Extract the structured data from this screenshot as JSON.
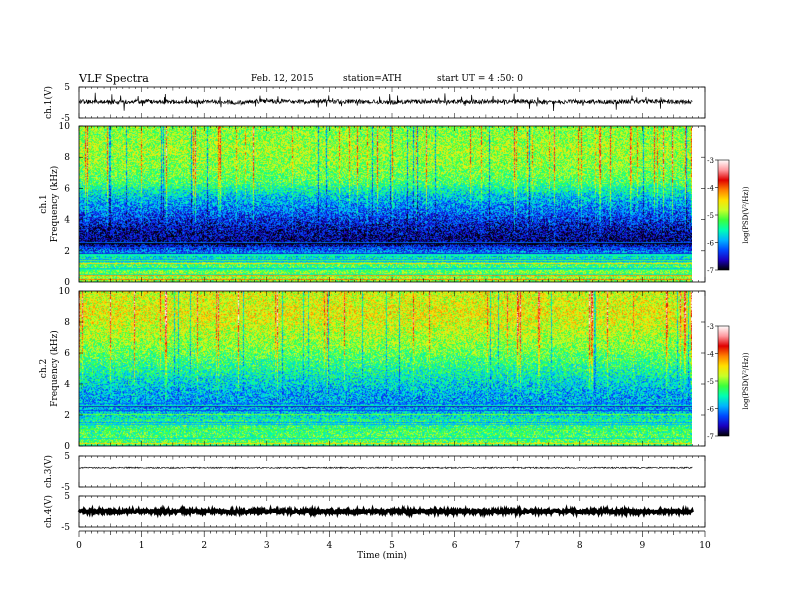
{
  "header": {
    "title": "VLF Spectra",
    "date": "Feb. 12, 2015",
    "station": "station=ATH",
    "start": "start UT = 4 :50: 0"
  },
  "colors": {
    "colormap": [
      "#000000",
      "#1a00c0",
      "#0048ff",
      "#00b4ff",
      "#00ffb4",
      "#3cff3c",
      "#c8ff28",
      "#ffe000",
      "#ff8000",
      "#e00000",
      "#ff9aa0",
      "#ffffff"
    ],
    "trace": "#000000",
    "axis": "#000000"
  },
  "chart_data": [
    {
      "type": "line",
      "panel": "ch1-waveform",
      "ylabel": "ch.1(V)",
      "ylim": [
        -5,
        5
      ],
      "yticks": [
        "5",
        "-5"
      ],
      "x": [
        0,
        0.5,
        1,
        1.5,
        2,
        2.5,
        3,
        3.5,
        4,
        4.5,
        5,
        5.5,
        6,
        6.5,
        7,
        7.5,
        8,
        8.5,
        9,
        9.5,
        9.8
      ],
      "y": [
        0.3,
        0.1,
        0.4,
        0.2,
        0.3,
        0.0,
        0.5,
        0.2,
        0.4,
        0.3,
        0.1,
        0.4,
        0.2,
        0.3,
        0.4,
        0.1,
        0.3,
        0.2,
        0.4,
        0.2,
        0.3
      ]
    },
    {
      "type": "heatmap",
      "panel": "ch1-spectrogram",
      "xlabel": "Time (min)",
      "ylabel": "Frequency (kHz)",
      "channel_label": "ch.1",
      "ylim": [
        0,
        10
      ],
      "yticks": [
        "0",
        "2",
        "4",
        "6",
        "8",
        "10"
      ],
      "colorbar": {
        "label": "log(PSD(V²/Hz))",
        "range": [
          -7,
          -3
        ],
        "ticks": [
          "-3",
          "-4",
          "-5",
          "-6",
          "-7"
        ]
      },
      "frequency_khz": [
        0.5,
        1.5,
        2.5,
        3.5,
        4.5,
        5.5,
        6.5,
        7.5,
        8.5,
        9.5
      ],
      "log_psd_mean": [
        -5.0,
        -5.5,
        -6.8,
        -6.6,
        -6.2,
        -5.8,
        -5.2,
        -5.0,
        -4.9,
        -5.0
      ]
    },
    {
      "type": "heatmap",
      "panel": "ch2-spectrogram",
      "xlabel": "Time (min)",
      "ylabel": "Frequency (kHz)",
      "channel_label": "ch.2",
      "ylim": [
        0,
        10
      ],
      "yticks": [
        "0",
        "2",
        "4",
        "6",
        "8",
        "10"
      ],
      "colorbar": {
        "label": "log(PSD(V²/Hz))",
        "range": [
          -7,
          -3
        ],
        "ticks": [
          "-3",
          "-4",
          "-5",
          "-6",
          "-7"
        ]
      },
      "frequency_khz": [
        0.5,
        1.5,
        2.5,
        3.5,
        4.5,
        5.5,
        6.5,
        7.5,
        8.5,
        9.5
      ],
      "log_psd_mean": [
        -5.2,
        -5.4,
        -6.0,
        -5.9,
        -5.6,
        -5.3,
        -5.0,
        -4.8,
        -4.6,
        -4.7
      ]
    },
    {
      "type": "line",
      "panel": "ch3-waveform",
      "ylabel": "ch.3(V)",
      "ylim": [
        -5,
        5
      ],
      "yticks": [
        "5",
        "-5"
      ],
      "x": [
        0,
        1,
        2,
        3,
        4,
        5,
        6,
        7,
        8,
        9,
        9.8
      ],
      "y": [
        1.2,
        1.2,
        1.2,
        1.2,
        1.2,
        1.2,
        1.2,
        1.2,
        1.2,
        1.2,
        1.2
      ]
    },
    {
      "type": "line",
      "panel": "ch4-waveform",
      "ylabel": "ch.4(V)",
      "ylim": [
        -5,
        5
      ],
      "yticks": [
        "5",
        "-5"
      ],
      "xlabel": "Time (min)",
      "xlim": [
        0,
        10
      ],
      "xticks": [
        "0",
        "1",
        "2",
        "3",
        "4",
        "5",
        "6",
        "7",
        "8",
        "9",
        "10"
      ],
      "x": [
        0,
        1,
        2,
        3,
        4,
        5,
        6,
        7,
        8,
        9,
        9.8
      ],
      "y": [
        0,
        0,
        0,
        0,
        0,
        0,
        0,
        0,
        0,
        0,
        0
      ]
    }
  ]
}
